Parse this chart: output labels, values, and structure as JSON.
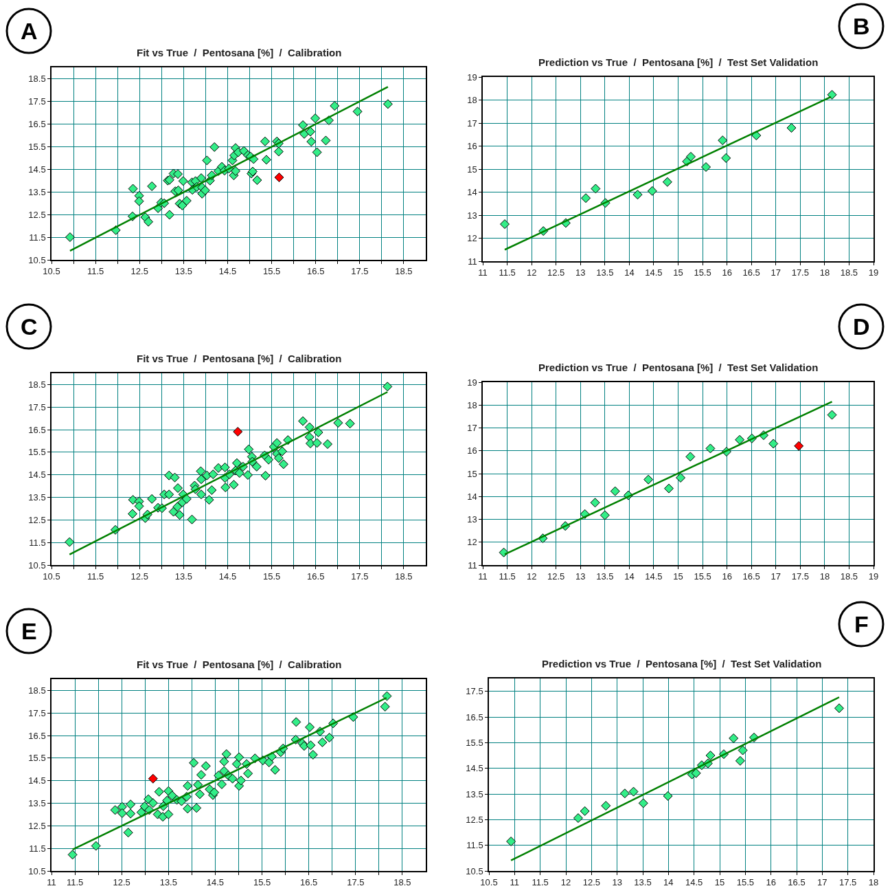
{
  "chart_data": [
    {
      "type": "scatter",
      "title": "Fit vs True  /  Pentosana [%]  /  Calibration",
      "annotations": [
        "A"
      ],
      "marker": "diamond",
      "grid": true,
      "xlim": [
        10.5,
        19
      ],
      "ylim": [
        10.5,
        19
      ],
      "xticks": [
        10.5,
        {
          "value": 11,
          "label": null
        },
        11.5,
        {
          "value": 12,
          "label": null
        },
        12.5,
        {
          "value": 13,
          "label": null
        },
        13.5,
        {
          "value": 14,
          "label": null
        },
        14.5,
        {
          "value": 15,
          "label": null
        },
        15.5,
        {
          "value": 16,
          "label": null
        },
        16.5,
        {
          "value": 17,
          "label": null
        },
        17.5,
        {
          "value": 18,
          "label": null
        },
        18.5
      ],
      "yticks": [
        10.5,
        11.5,
        12.5,
        13.5,
        14.5,
        15.5,
        16.5,
        17.5,
        18.5
      ],
      "series": [
        {
          "color": "#33ee88",
          "x": [
            10.92,
            11.96,
            12.34,
            12.35,
            12.49,
            12.49,
            12.63,
            12.7,
            12.78,
            12.92,
            12.99,
            13.06,
            13.18,
            13.14,
            13.18,
            13.27,
            13.37,
            13.31,
            13.38,
            13.41,
            13.47,
            13.57,
            13.49,
            13.69,
            13.7,
            13.77,
            13.8,
            13.9,
            13.92,
            13.92,
            13.99,
            14.03,
            14.1,
            14.14,
            14.2,
            14.29,
            14.37,
            14.43,
            14.53,
            14.61,
            14.64,
            14.68,
            14.65,
            14.68,
            14.74,
            14.87,
            14.96,
            15.02,
            15.09,
            15.04,
            15.07,
            15.17,
            15.35,
            15.38,
            15.62,
            15.66,
            15.66,
            16.21,
            16.24,
            16.38,
            16.4,
            16.49,
            16.53,
            16.73,
            16.8,
            16.93,
            17.45,
            18.14
          ],
          "values": [
            11.5,
            11.81,
            12.42,
            13.64,
            13.33,
            13.09,
            12.38,
            12.18,
            13.75,
            12.78,
            13.03,
            13.0,
            12.49,
            14.0,
            14.03,
            14.31,
            14.29,
            13.53,
            13.57,
            12.98,
            12.9,
            13.11,
            13.98,
            13.92,
            13.59,
            13.98,
            13.72,
            14.11,
            13.7,
            13.42,
            13.57,
            14.89,
            14.0,
            14.23,
            15.48,
            14.42,
            14.61,
            14.44,
            14.53,
            14.89,
            14.23,
            14.42,
            15.11,
            15.44,
            15.25,
            15.31,
            15.12,
            15.06,
            14.95,
            14.31,
            14.4,
            14.02,
            15.73,
            14.92,
            15.73,
            15.64,
            15.28,
            16.45,
            16.06,
            16.16,
            15.72,
            16.75,
            15.25,
            15.77,
            16.66,
            17.3,
            17.05,
            17.38
          ]
        },
        {
          "color": "#ff0000",
          "x": [
            15.67
          ],
          "values": [
            14.14
          ]
        },
        {
          "type": "line",
          "color": "#008000",
          "marker": "none",
          "x": [
            10.92,
            18.14
          ],
          "values": [
            10.9,
            18.14
          ]
        }
      ]
    },
    {
      "type": "scatter",
      "title": "Prediction vs True  /  Pentosana [%]  /  Test Set Validation",
      "annotations": [
        "B"
      ],
      "marker": "diamond",
      "grid": true,
      "xlim": [
        11,
        19
      ],
      "ylim": [
        11,
        19
      ],
      "xticks": [
        11,
        11.5,
        12,
        12.5,
        13,
        13.5,
        14,
        14.5,
        15,
        15.5,
        16,
        16.5,
        17,
        17.5,
        18,
        18.5,
        19
      ],
      "yticks": [
        11,
        12,
        13,
        14,
        15,
        16,
        17,
        18,
        19
      ],
      "series": [
        {
          "color": "#33ee88",
          "x": [
            11.45,
            12.24,
            12.7,
            13.11,
            13.31,
            13.51,
            14.17,
            14.47,
            14.78,
            15.18,
            15.26,
            15.57,
            15.91,
            15.98,
            16.6,
            17.32,
            18.15
          ],
          "values": [
            12.61,
            12.31,
            12.66,
            13.74,
            14.15,
            13.53,
            13.89,
            14.05,
            14.44,
            15.33,
            15.54,
            15.09,
            16.25,
            15.48,
            16.46,
            16.79,
            18.23
          ]
        },
        {
          "type": "line",
          "color": "#008000",
          "marker": "none",
          "x": [
            11.45,
            18.13
          ],
          "values": [
            11.5,
            18.14
          ]
        }
      ]
    },
    {
      "type": "scatter",
      "title": "Fit vs True  /  Pentosana [%]  /  Calibration",
      "annotations": [
        "C"
      ],
      "marker": "diamond",
      "grid": true,
      "xlim": [
        10.5,
        19
      ],
      "ylim": [
        10.5,
        19
      ],
      "xticks": [
        10.5,
        {
          "value": 11,
          "label": null
        },
        11.5,
        {
          "value": 12,
          "label": null
        },
        12.5,
        {
          "value": 13,
          "label": null
        },
        13.5,
        {
          "value": 14,
          "label": null
        },
        14.5,
        {
          "value": 15,
          "label": null
        },
        15.5,
        {
          "value": 16,
          "label": null
        },
        16.5,
        {
          "value": 17,
          "label": null
        },
        17.5,
        {
          "value": 18,
          "label": null
        },
        18.5
      ],
      "yticks": [
        10.5,
        11.5,
        12.5,
        13.5,
        14.5,
        15.5,
        16.5,
        17.5,
        18.5
      ],
      "series": [
        {
          "color": "#33ee88",
          "x": [
            10.91,
            11.95,
            12.34,
            12.35,
            12.49,
            12.49,
            12.63,
            12.68,
            12.78,
            12.92,
            13.01,
            13.06,
            13.17,
            13.17,
            13.3,
            13.27,
            13.36,
            13.37,
            13.41,
            13.47,
            13.49,
            13.57,
            13.69,
            13.75,
            13.77,
            13.89,
            13.9,
            13.9,
            14.03,
            14.08,
            14.14,
            14.17,
            14.29,
            14.44,
            14.44,
            14.45,
            14.54,
            14.64,
            14.68,
            14.71,
            14.77,
            14.85,
            14.96,
            14.98,
            15.05,
            15.06,
            15.16,
            15.34,
            15.36,
            15.43,
            15.55,
            15.62,
            15.62,
            15.66,
            15.74,
            15.77,
            15.87,
            16.21,
            16.36,
            16.36,
            16.38,
            16.53,
            16.56,
            16.77,
            17.01,
            17.28,
            18.13
          ],
          "values": [
            11.52,
            12.06,
            12.77,
            13.39,
            13.32,
            13.11,
            12.58,
            12.74,
            13.43,
            13.04,
            13.02,
            13.63,
            13.63,
            14.47,
            14.38,
            12.86,
            13.08,
            13.91,
            12.72,
            13.28,
            13.63,
            13.43,
            12.52,
            14.02,
            13.86,
            14.66,
            14.3,
            13.63,
            14.47,
            13.39,
            13.82,
            14.52,
            14.8,
            14.83,
            14.36,
            13.94,
            14.52,
            14.06,
            14.69,
            15.02,
            14.58,
            14.86,
            14.49,
            15.63,
            15.3,
            15.08,
            14.86,
            15.36,
            14.46,
            15.17,
            15.74,
            15.91,
            15.43,
            15.24,
            15.54,
            14.97,
            16.04,
            16.88,
            16.61,
            16.17,
            15.89,
            15.91,
            16.38,
            15.86,
            16.8,
            16.77,
            18.41
          ]
        },
        {
          "color": "#ff0000",
          "x": [
            14.73
          ],
          "values": [
            16.41
          ]
        },
        {
          "type": "line",
          "color": "#008000",
          "marker": "none",
          "x": [
            10.91,
            18.13
          ],
          "values": [
            10.97,
            18.17
          ]
        }
      ]
    },
    {
      "type": "scatter",
      "title": "Prediction vs True  /  Pentosana [%]  /  Test Set Validation",
      "annotations": [
        "D"
      ],
      "marker": "diamond",
      "grid": true,
      "xlim": [
        11,
        19
      ],
      "ylim": [
        11,
        19
      ],
      "xticks": [
        11,
        11.5,
        12,
        12.5,
        13,
        13.5,
        14,
        14.5,
        15,
        15.5,
        16,
        16.5,
        17,
        17.5,
        18,
        18.5,
        19
      ],
      "yticks": [
        11,
        12,
        13,
        14,
        15,
        16,
        17,
        18,
        19
      ],
      "series": [
        {
          "color": "#33ee88",
          "x": [
            11.43,
            12.23,
            12.69,
            13.09,
            13.3,
            13.5,
            13.71,
            13.98,
            14.39,
            14.81,
            15.05,
            15.25,
            15.66,
            15.99,
            16.26,
            16.51,
            16.75,
            16.95,
            18.15
          ],
          "values": [
            11.55,
            12.17,
            12.71,
            13.23,
            13.73,
            13.18,
            14.23,
            14.05,
            14.74,
            14.35,
            14.82,
            15.74,
            16.1,
            15.96,
            16.48,
            16.54,
            16.68,
            16.31,
            17.57
          ]
        },
        {
          "color": "#ff0000",
          "x": [
            17.47
          ],
          "values": [
            16.21
          ]
        },
        {
          "type": "line",
          "color": "#008000",
          "marker": "none",
          "x": [
            11.45,
            18.15
          ],
          "values": [
            11.47,
            18.15
          ]
        }
      ]
    },
    {
      "type": "scatter",
      "title": "Fit vs True  /  Pentosana [%]  /  Calibration",
      "annotations": [
        "E"
      ],
      "marker": "diamond",
      "grid": true,
      "xlim": [
        11,
        19
      ],
      "ylim": [
        10.5,
        19
      ],
      "xticks": [
        11,
        11.5,
        {
          "value": 12,
          "label": null
        },
        12.5,
        {
          "value": 13,
          "label": null
        },
        13.5,
        {
          "value": 14,
          "label": null
        },
        14.5,
        {
          "value": 15,
          "label": null
        },
        15.5,
        {
          "value": 16,
          "label": null
        },
        16.5,
        {
          "value": 17,
          "label": null
        },
        17.5,
        {
          "value": 18,
          "label": null
        },
        18.5
      ],
      "yticks": [
        10.5,
        11.5,
        12.5,
        13.5,
        14.5,
        15.5,
        16.5,
        17.5,
        18.5
      ],
      "series": [
        {
          "color": "#33ee88",
          "x": [
            11.45,
            11.95,
            12.36,
            12.51,
            12.51,
            12.64,
            12.69,
            12.69,
            12.92,
            12.99,
            13.07,
            13.09,
            13.17,
            13.27,
            13.3,
            13.38,
            13.39,
            13.47,
            13.5,
            13.5,
            13.58,
            13.68,
            13.78,
            13.89,
            13.91,
            13.91,
            14.04,
            14.1,
            14.13,
            14.17,
            14.2,
            14.3,
            14.38,
            14.45,
            14.48,
            14.57,
            14.64,
            14.69,
            14.69,
            14.74,
            14.78,
            14.87,
            14.96,
            15.01,
            15.01,
            15.05,
            15.17,
            15.2,
            15.35,
            15.52,
            15.65,
            15.71,
            15.78,
            15.9,
            15.95,
            16.22,
            16.23,
            16.36,
            16.4,
            16.52,
            16.54,
            16.59,
            16.74,
            16.79,
            16.94,
            17.02,
            17.45,
            18.13,
            18.17
          ],
          "values": [
            11.22,
            11.61,
            13.2,
            13.34,
            13.06,
            12.2,
            13.45,
            13.04,
            13.1,
            13.36,
            13.68,
            13.2,
            13.51,
            13.01,
            14.01,
            12.9,
            13.37,
            13.62,
            13.01,
            14.04,
            13.84,
            13.65,
            13.59,
            13.79,
            13.26,
            14.27,
            15.29,
            13.29,
            14.32,
            13.9,
            14.76,
            15.15,
            14.12,
            13.86,
            13.98,
            14.73,
            14.34,
            15.35,
            14.93,
            15.68,
            14.73,
            14.59,
            15.24,
            15.54,
            14.27,
            14.51,
            15.24,
            14.82,
            15.49,
            15.4,
            15.31,
            15.57,
            14.98,
            15.76,
            15.93,
            16.32,
            17.1,
            16.16,
            16.04,
            16.87,
            16.07,
            15.65,
            16.68,
            16.2,
            16.41,
            17.04,
            17.32,
            17.78,
            18.25
          ]
        },
        {
          "color": "#ff0000",
          "x": [
            13.17
          ],
          "values": [
            14.59
          ]
        },
        {
          "type": "line",
          "color": "#008000",
          "marker": "none",
          "x": [
            11.45,
            18.16
          ],
          "values": [
            11.45,
            18.17
          ]
        }
      ]
    },
    {
      "type": "scatter",
      "title": "Prediction vs True  /  Pentosana [%]  /  Test Set Validation",
      "annotations": [
        "F"
      ],
      "marker": "diamond",
      "grid": true,
      "xlim": [
        10.5,
        18
      ],
      "ylim": [
        10.5,
        18
      ],
      "xticks": [
        10.5,
        11,
        11.5,
        12,
        12.5,
        13,
        13.5,
        14,
        14.5,
        15,
        15.5,
        16,
        16.5,
        17,
        17.5,
        18
      ],
      "yticks": [
        10.5,
        11.5,
        12.5,
        13.5,
        14.5,
        15.5,
        16.5,
        17.5
      ],
      "series": [
        {
          "color": "#33ee88",
          "x": [
            10.93,
            12.24,
            12.37,
            12.78,
            13.15,
            13.32,
            13.51,
            13.99,
            14.46,
            14.54,
            14.65,
            14.77,
            14.82,
            15.08,
            15.27,
            15.4,
            15.45,
            15.67,
            17.33
          ],
          "values": [
            11.65,
            12.56,
            12.83,
            13.04,
            13.52,
            13.59,
            13.14,
            13.42,
            14.26,
            14.31,
            14.62,
            14.69,
            15.0,
            15.05,
            15.67,
            14.79,
            15.2,
            15.7,
            16.84
          ]
        },
        {
          "type": "line",
          "color": "#008000",
          "marker": "none",
          "x": [
            10.93,
            17.33
          ],
          "values": [
            10.91,
            17.27
          ]
        }
      ]
    }
  ]
}
